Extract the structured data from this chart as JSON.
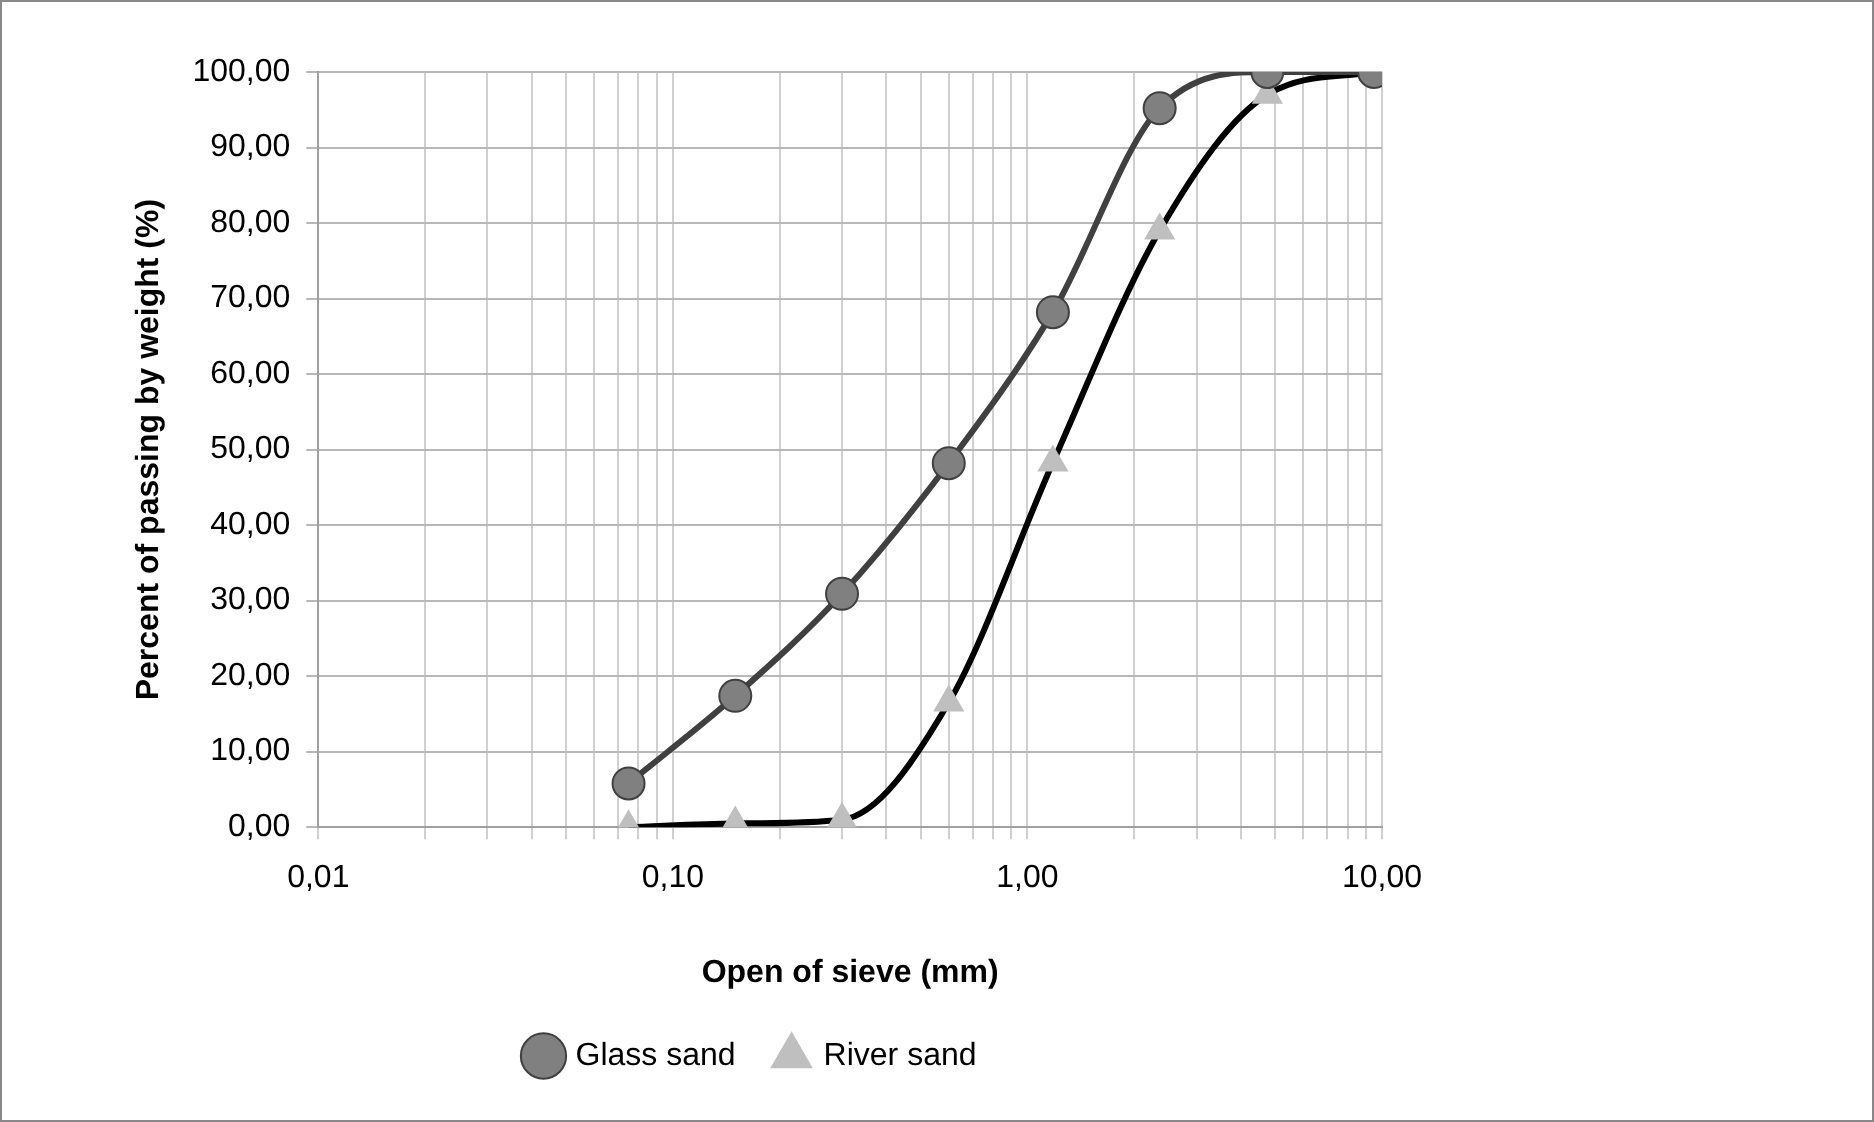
{
  "chart_data": {
    "type": "line",
    "xlabel": "Open of sieve (mm)",
    "ylabel": "Percent of passing by weight (%)",
    "log": "x",
    "xlim": [
      0.01,
      10
    ],
    "xticks": [
      {
        "value": 0.01,
        "label": "0,01"
      },
      {
        "value": 0.02,
        "label": null
      },
      {
        "value": 0.03,
        "label": null
      },
      {
        "value": 0.04,
        "label": null
      },
      {
        "value": 0.05,
        "label": null
      },
      {
        "value": 0.06,
        "label": null
      },
      {
        "value": 0.07,
        "label": null
      },
      {
        "value": 0.08,
        "label": null
      },
      {
        "value": 0.09,
        "label": null
      },
      {
        "value": 0.1,
        "label": "0,10"
      },
      {
        "value": 0.2,
        "label": null
      },
      {
        "value": 0.3,
        "label": null
      },
      {
        "value": 0.4,
        "label": null
      },
      {
        "value": 0.5,
        "label": null
      },
      {
        "value": 0.6,
        "label": null
      },
      {
        "value": 0.7,
        "label": null
      },
      {
        "value": 0.8,
        "label": null
      },
      {
        "value": 0.9,
        "label": null
      },
      {
        "value": 1,
        "label": "1,00"
      },
      {
        "value": 2,
        "label": null
      },
      {
        "value": 3,
        "label": null
      },
      {
        "value": 4,
        "label": null
      },
      {
        "value": 5,
        "label": null
      },
      {
        "value": 6,
        "label": null
      },
      {
        "value": 7,
        "label": null
      },
      {
        "value": 8,
        "label": null
      },
      {
        "value": 9,
        "label": null
      },
      {
        "value": 10,
        "label": "10,00"
      }
    ],
    "ylim": [
      0,
      100
    ],
    "yticks": [
      {
        "value": 0,
        "label": "0,00"
      },
      {
        "value": 10,
        "label": "10,00"
      },
      {
        "value": 20,
        "label": "20,00"
      },
      {
        "value": 30,
        "label": "30,00"
      },
      {
        "value": 40,
        "label": "40,00"
      },
      {
        "value": 50,
        "label": "50,00"
      },
      {
        "value": 60,
        "label": "60,00"
      },
      {
        "value": 70,
        "label": "70,00"
      },
      {
        "value": 80,
        "label": "80,00"
      },
      {
        "value": 90,
        "label": "90,00"
      },
      {
        "value": 100,
        "label": "100,00"
      }
    ],
    "grid": true,
    "legend": "bottom",
    "line_style": "solid",
    "x": [
      0.075,
      0.15,
      0.3,
      0.6,
      1.18,
      2.36,
      4.75,
      9.5
    ],
    "series": [
      {
        "name": "Glass sand",
        "color": "#404040",
        "colors": [
          "#808080",
          "#808080",
          "#808080",
          "#808080",
          "#808080",
          "#808080",
          "#808080",
          "#808080"
        ],
        "marker": "circle",
        "values": [
          5.8,
          17.4,
          30.9,
          48.2,
          68.2,
          95.2,
          100,
          100
        ]
      },
      {
        "name": "River sand",
        "color": "#000000",
        "colors": [
          "#bfbfbf",
          "#bfbfbf",
          "#bfbfbf",
          "#bfbfbf",
          "#bfbfbf",
          "#bfbfbf",
          "#bfbfbf",
          "#bfbfbf"
        ],
        "marker": "triangle",
        "values": [
          0,
          0.5,
          1,
          16.5,
          48.3,
          79,
          97,
          100
        ]
      }
    ]
  }
}
